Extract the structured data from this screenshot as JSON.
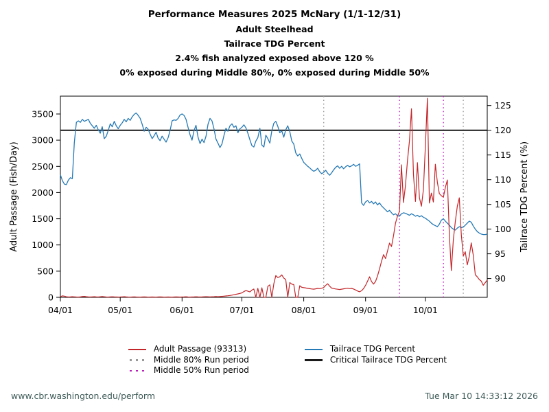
{
  "titles": {
    "line1": "Performance Measures 2025 McNary (1/1-12/31)",
    "line2": "Adult Steelhead",
    "line3": "Tailrace TDG Percent",
    "line4": "2.4% fish analyzed exposed above 120 %",
    "line5": "0% exposed during Middle 80%, 0% exposed during Middle 50%"
  },
  "legend": {
    "adult_passage": "Adult Passage (93313)",
    "middle80": "Middle 80% Run period",
    "middle50": "Middle 50% Run period",
    "tdg": "Tailrace TDG Percent",
    "critical": "Critical Tailrace TDG Percent"
  },
  "footer": {
    "url": "www.cbr.washington.edu/perform",
    "timestamp": "Tue Mar 10 14:33:12 2026"
  },
  "colors": {
    "adult_passage": "#c3262a",
    "tdg": "#2579b5",
    "middle80": "#999999",
    "middle50": "#bb1fbb",
    "critical": "#1a1a1a",
    "footer_text": "#3e5b57"
  },
  "chart_data": {
    "type": "line",
    "title": "Performance Measures 2025 McNary (1/1-12/31)",
    "subtitles": [
      "Adult Steelhead",
      "Tailrace TDG Percent",
      "2.4% fish analyzed exposed above 120 %",
      "0% exposed during Middle 80%, 0% exposed during Middle 50%"
    ],
    "grid": false,
    "legend_position": "below",
    "x_axis": {
      "unit": "daily values, day index 0 = 04/01, last index 214 = approx 11/01",
      "tick_labels": [
        {
          "label": "04/01",
          "day": 0
        },
        {
          "label": "05/01",
          "day": 30
        },
        {
          "label": "06/01",
          "day": 61
        },
        {
          "label": "07/01",
          "day": 91
        },
        {
          "label": "08/01",
          "day": 122
        },
        {
          "label": "09/01",
          "day": 153
        },
        {
          "label": "10/01",
          "day": 183
        }
      ]
    },
    "left_axis": {
      "label": "Adult Passage (Fish/Day)",
      "ticks": [
        0,
        500,
        1000,
        1500,
        2000,
        2500,
        3000,
        3500
      ],
      "range": [
        0,
        3840
      ]
    },
    "right_axis": {
      "label": "Tailrace TDG Percent (%)",
      "ticks": [
        90,
        95,
        100,
        105,
        110,
        115,
        120,
        125
      ],
      "range": [
        86.2,
        126.9
      ]
    },
    "reference_lines": {
      "critical_tdg_percent": 120,
      "middle80_run_period_days": [
        132,
        202
      ],
      "middle50_run_period_days": [
        170,
        192
      ]
    },
    "series": [
      {
        "name": "Adult Passage (93313)",
        "axis": "left",
        "color_key": "adult_passage",
        "values": [
          12,
          28,
          22,
          10,
          6,
          8,
          12,
          9,
          6,
          5,
          8,
          14,
          18,
          12,
          8,
          6,
          9,
          12,
          8,
          6,
          10,
          14,
          10,
          7,
          5,
          8,
          11,
          8,
          6,
          5,
          6,
          9,
          12,
          8,
          5,
          4,
          6,
          9,
          7,
          5,
          4,
          6,
          8,
          6,
          4,
          5,
          7,
          5,
          4,
          6,
          8,
          6,
          4,
          5,
          7,
          5,
          4,
          6,
          8,
          6,
          5,
          6,
          8,
          10,
          7,
          5,
          6,
          8,
          10,
          8,
          6,
          8,
          10,
          12,
          10,
          8,
          10,
          12,
          14,
          12,
          15,
          18,
          22,
          26,
          30,
          35,
          42,
          50,
          58,
          66,
          75,
          85,
          110,
          128,
          118,
          104,
          138,
          158,
          0,
          172,
          0,
          182,
          0,
          0,
          208,
          238,
          0,
          258,
          415,
          378,
          392,
          428,
          368,
          338,
          0,
          282,
          252,
          242,
          0,
          0,
          222,
          192,
          185,
          178,
          170,
          165,
          160,
          156,
          163,
          170,
          166,
          173,
          188,
          228,
          260,
          212,
          176,
          168,
          160,
          155,
          150,
          156,
          163,
          168,
          173,
          166,
          170,
          158,
          140,
          120,
          106,
          126,
          168,
          228,
          308,
          392,
          302,
          252,
          302,
          408,
          540,
          690,
          815,
          740,
          885,
          1035,
          970,
          1175,
          1415,
          1550,
          1640,
          2530,
          1810,
          2130,
          2600,
          2980,
          3600,
          2340,
          1830,
          2570,
          1900,
          1740,
          2060,
          2900,
          3800,
          1800,
          1990,
          1820,
          2540,
          2200,
          1980,
          1940,
          1910,
          2100,
          2240,
          1200,
          510,
          1100,
          1450,
          1740,
          1900,
          1200,
          790,
          870,
          620,
          780,
          1040,
          800,
          430,
          390,
          340,
          310,
          230,
          280,
          330
        ]
      },
      {
        "name": "Tailrace TDG Percent",
        "axis": "right",
        "color_key": "tdg",
        "values": [
          111,
          109.8,
          109.1,
          109,
          109.9,
          110.4,
          110.2,
          117.5,
          121.6,
          121.9,
          121.6,
          122.2,
          121.8,
          122,
          122.2,
          121.4,
          120.9,
          120.4,
          121,
          120.1,
          119.4,
          120.7,
          118.3,
          118.8,
          120,
          121.3,
          120.7,
          121.8,
          120.9,
          120.3,
          121,
          121.5,
          122.2,
          121.7,
          122.4,
          122,
          122.7,
          123.2,
          123.5,
          123,
          122.4,
          121.2,
          119.8,
          120.6,
          120.2,
          119.2,
          118.3,
          118.9,
          119.6,
          118.4,
          117.9,
          118.8,
          118.2,
          117.6,
          118.5,
          120,
          121.9,
          122.1,
          122,
          122.4,
          123.1,
          123.3,
          123,
          122.2,
          120.6,
          119.1,
          118,
          119.9,
          121,
          118.6,
          117.3,
          118.2,
          117.5,
          118.8,
          121.2,
          122.4,
          121.9,
          120.3,
          118.2,
          117.4,
          116.5,
          117.2,
          118.9,
          120.4,
          119.8,
          120.9,
          121.3,
          120.6,
          120.9,
          119.5,
          120.3,
          120.6,
          121.1,
          120.5,
          119.4,
          118.1,
          116.9,
          116.6,
          117.8,
          118.5,
          120.4,
          117,
          116.6,
          119,
          118.3,
          117.4,
          119.9,
          121.4,
          121.8,
          120.8,
          119.5,
          119.9,
          118.6,
          120.1,
          120.9,
          119.7,
          117.8,
          117.2,
          115.4,
          114.8,
          115.2,
          114.3,
          113.5,
          113.1,
          112.7,
          112.4,
          112,
          111.7,
          111.9,
          112.3,
          111.6,
          111.2,
          111.5,
          111.9,
          111.3,
          110.9,
          111.4,
          112,
          112.5,
          112.8,
          112.3,
          112.7,
          112.2,
          112.6,
          112.9,
          112.6,
          112.8,
          113.1,
          112.7,
          112.9,
          113.2,
          105.3,
          104.8,
          105.5,
          105.8,
          105.3,
          105.6,
          105.1,
          105.5,
          104.9,
          105.3,
          104.7,
          104.3,
          103.9,
          103.5,
          103.8,
          103.3,
          102.9,
          103.1,
          102.7,
          102.6,
          103.1,
          103.3,
          103.2,
          103,
          102.8,
          103.1,
          102.9,
          102.6,
          102.8,
          102.5,
          102.7,
          102.4,
          102.2,
          101.9,
          101.6,
          101.2,
          100.9,
          100.7,
          100.5,
          101,
          101.8,
          102.1,
          101.6,
          101.2,
          100.8,
          100.3,
          100,
          99.8,
          100.2,
          100.5,
          100.3,
          100.4,
          100.8,
          101.2,
          101.6,
          101.4,
          100.6,
          100,
          99.5,
          99.2,
          99,
          98.9,
          98.9,
          99
        ]
      }
    ]
  }
}
